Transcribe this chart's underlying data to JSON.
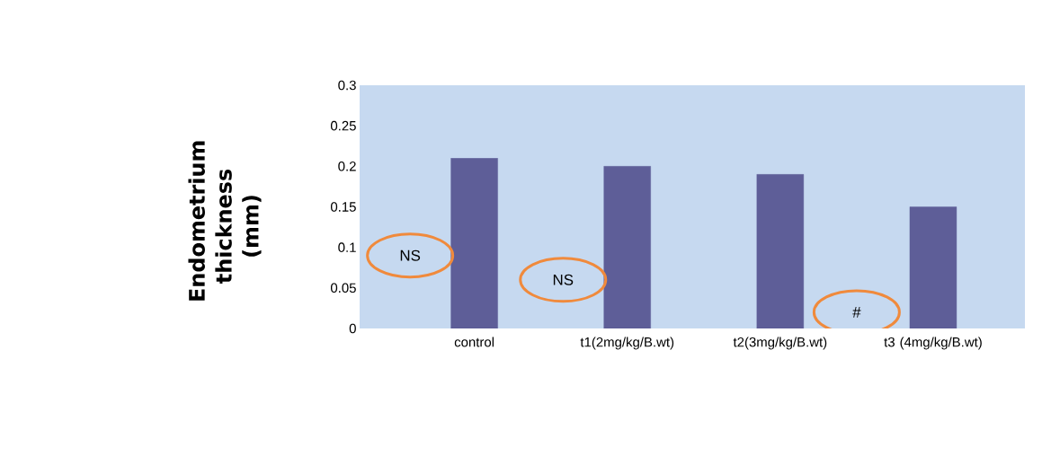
{
  "chart_data": {
    "type": "bar",
    "ylabel": "Endometrium thickness (mm)",
    "categories": [
      "control",
      "t1(2mg/kg/B.wt)",
      "t2(3mg/kg/B.wt)",
      "t3 (4mg/kg/B.wt)"
    ],
    "values": [
      0.21,
      0.2,
      0.19,
      0.15
    ],
    "color": "#5e5e98",
    "ylim": [
      0,
      0.3
    ],
    "yticks": [
      0,
      0.05,
      0.1,
      0.15,
      0.2,
      0.25,
      0.3
    ],
    "annotations": [
      "NS",
      "NS",
      "#"
    ]
  }
}
